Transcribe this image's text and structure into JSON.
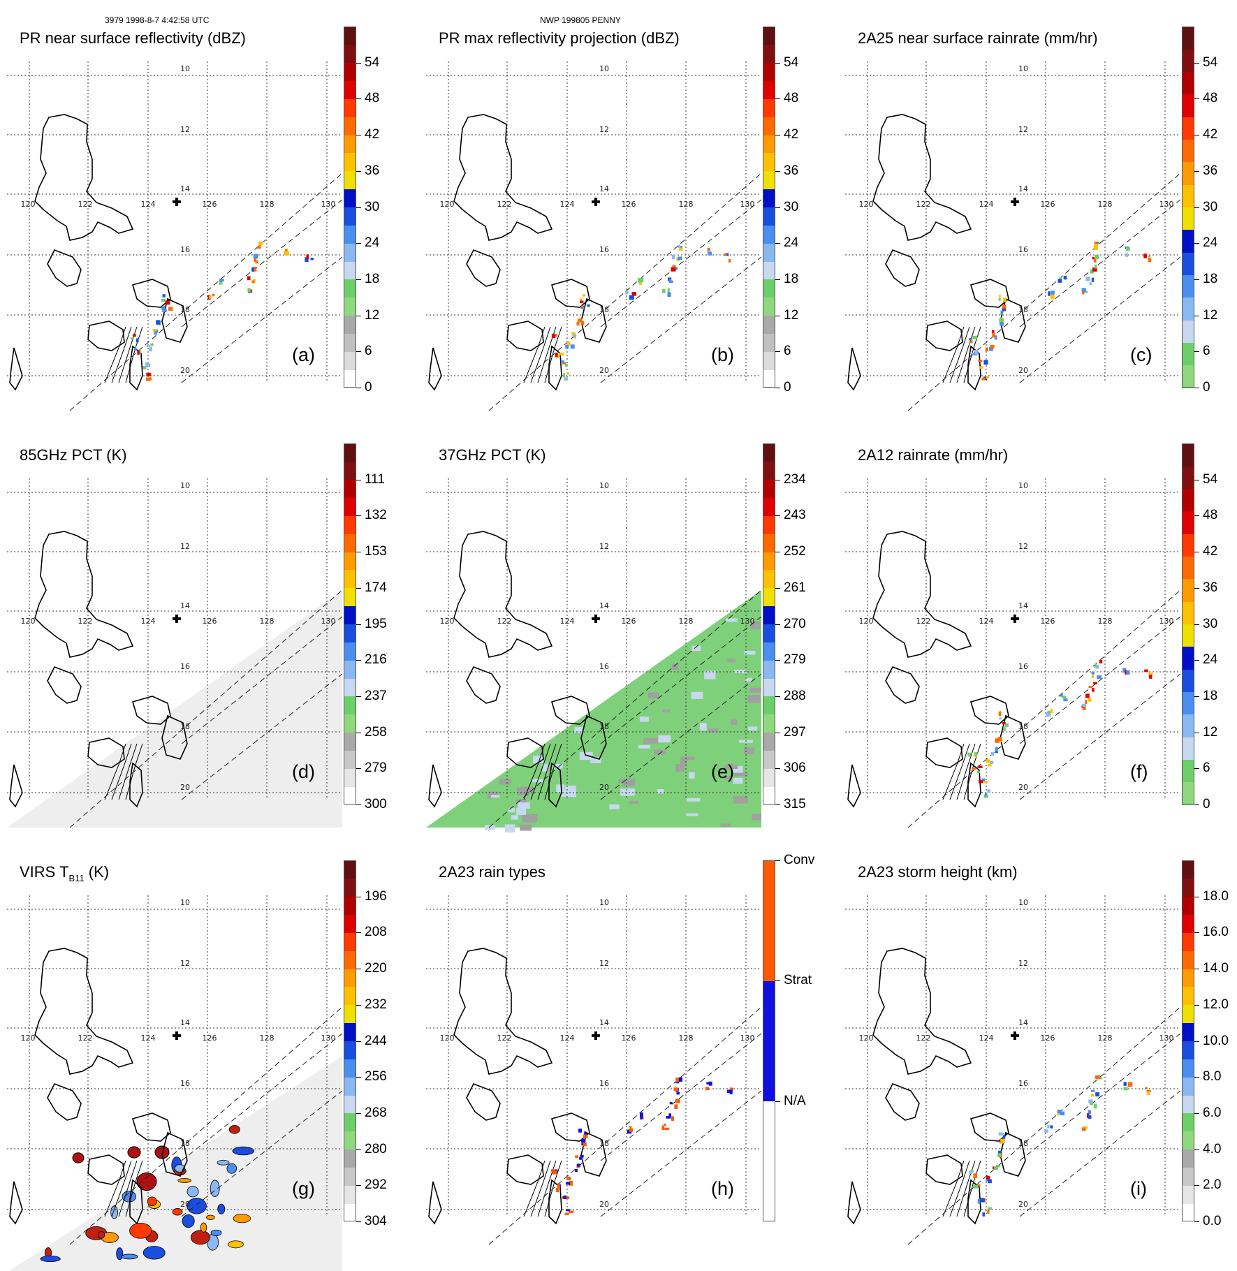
{
  "header": {
    "left": "3979 1998-8-7 4:42:58 UTC",
    "center": "NWP 199805 PENNY"
  },
  "map": {
    "lon_labels": [
      "120",
      "122",
      "124",
      "126",
      "128",
      "130"
    ],
    "lat_labels": [
      "10",
      "12",
      "14",
      "16",
      "18",
      "20"
    ]
  },
  "panels": [
    {
      "title": "PR near surface reflectivity (dBZ)",
      "letter": "(a)",
      "data_type": "scattered",
      "colorbar": {
        "scheme": "dbz",
        "labels": [
          "0",
          "6",
          "12",
          "18",
          "24",
          "30",
          "36",
          "42",
          "48",
          "54"
        ]
      }
    },
    {
      "title": "PR max reflectivity projection (dBZ)",
      "letter": "(b)",
      "data_type": "scattered",
      "colorbar": {
        "scheme": "dbz",
        "labels": [
          "0",
          "6",
          "12",
          "18",
          "24",
          "30",
          "36",
          "42",
          "48",
          "54"
        ]
      }
    },
    {
      "title": "2A25 near surface rainrate (mm/hr)",
      "letter": "(c)",
      "data_type": "scattered",
      "colorbar": {
        "scheme": "rain",
        "labels": [
          "0",
          "6",
          "12",
          "18",
          "24",
          "30",
          "36",
          "42",
          "48",
          "54"
        ]
      }
    },
    {
      "title": "85GHz PCT (K)",
      "letter": "(d)",
      "data_type": "swath-gray",
      "colorbar": {
        "scheme": "pct",
        "labels": [
          "300",
          "279",
          "258",
          "237",
          "216",
          "195",
          "174",
          "153",
          "132",
          "111"
        ]
      }
    },
    {
      "title": "37GHz PCT (K)",
      "letter": "(e)",
      "data_type": "swath-green",
      "colorbar": {
        "scheme": "pct",
        "labels": [
          "315",
          "306",
          "297",
          "288",
          "279",
          "270",
          "261",
          "252",
          "243",
          "234"
        ]
      }
    },
    {
      "title": "2A12 rainrate (mm/hr)",
      "letter": "(f)",
      "data_type": "scattered",
      "colorbar": {
        "scheme": "rain",
        "labels": [
          "0",
          "6",
          "12",
          "18",
          "24",
          "30",
          "36",
          "42",
          "48",
          "54"
        ]
      }
    },
    {
      "title": "VIRS T",
      "title_sub": "B11",
      "title_suffix": " (K)",
      "letter": "(g)",
      "data_type": "swath-virs",
      "colorbar": {
        "scheme": "pct",
        "labels": [
          "304",
          "292",
          "280",
          "268",
          "256",
          "244",
          "232",
          "220",
          "208",
          "196"
        ]
      }
    },
    {
      "title": "2A23 rain types",
      "letter": "(h)",
      "data_type": "scattered",
      "colorbar": {
        "scheme": "raintype",
        "labels": [
          "N/A",
          "Strat",
          "Conv"
        ]
      }
    },
    {
      "title": "2A23 storm height (km)",
      "letter": "(i)",
      "data_type": "scattered",
      "colorbar": {
        "scheme": "height",
        "labels": [
          "0.0",
          "2.0",
          "4.0",
          "6.0",
          "8.0",
          "10.0",
          "12.0",
          "14.0",
          "16.0",
          "18.0"
        ]
      }
    }
  ],
  "colors": {
    "dbz": [
      "#ffffff",
      "#dcdcdc",
      "#c0c0c0",
      "#a9a9a9",
      "#8ed87d",
      "#6ccf6a",
      "#c8d8f0",
      "#8ab8f0",
      "#4a8ef0",
      "#1a4ee0",
      "#0010c8",
      "#f0e000",
      "#ffc000",
      "#ff9a00",
      "#ff6a00",
      "#ff3a00",
      "#e00000",
      "#b00000",
      "#801010",
      "#601010"
    ],
    "rain": [
      "#8ed87d",
      "#6ccf6a",
      "#c8d8f0",
      "#8ab8f0",
      "#4a8ef0",
      "#1a4ee0",
      "#0010c8",
      "#f0e000",
      "#ffc000",
      "#ff9a00",
      "#ff6a00",
      "#ff3a00",
      "#e00000",
      "#b00000",
      "#801010",
      "#601010"
    ],
    "pct": [
      "#ffffff",
      "#e6e6e6",
      "#c8c8c8",
      "#a9a9a9",
      "#8ed87d",
      "#6ccf6a",
      "#c8d8f0",
      "#8ab8f0",
      "#4a8ef0",
      "#1a4ee0",
      "#0010c8",
      "#f0e000",
      "#ffc000",
      "#ff9a00",
      "#ff6a00",
      "#ff3a00",
      "#e00000",
      "#b00000",
      "#801010",
      "#601010"
    ],
    "height": [
      "#ffffff",
      "#e6e6e6",
      "#c8c8c8",
      "#a9a9a9",
      "#8ed87d",
      "#6ccf6a",
      "#c8d8f0",
      "#8ab8f0",
      "#4a8ef0",
      "#1a4ee0",
      "#0010c8",
      "#f0e000",
      "#ffc000",
      "#ff9a00",
      "#ff6a00",
      "#ff3a00",
      "#e00000",
      "#b00000",
      "#801010",
      "#601010"
    ],
    "raintype": [
      "#ffffff",
      "#1010e0",
      "#ff5a00"
    ]
  }
}
